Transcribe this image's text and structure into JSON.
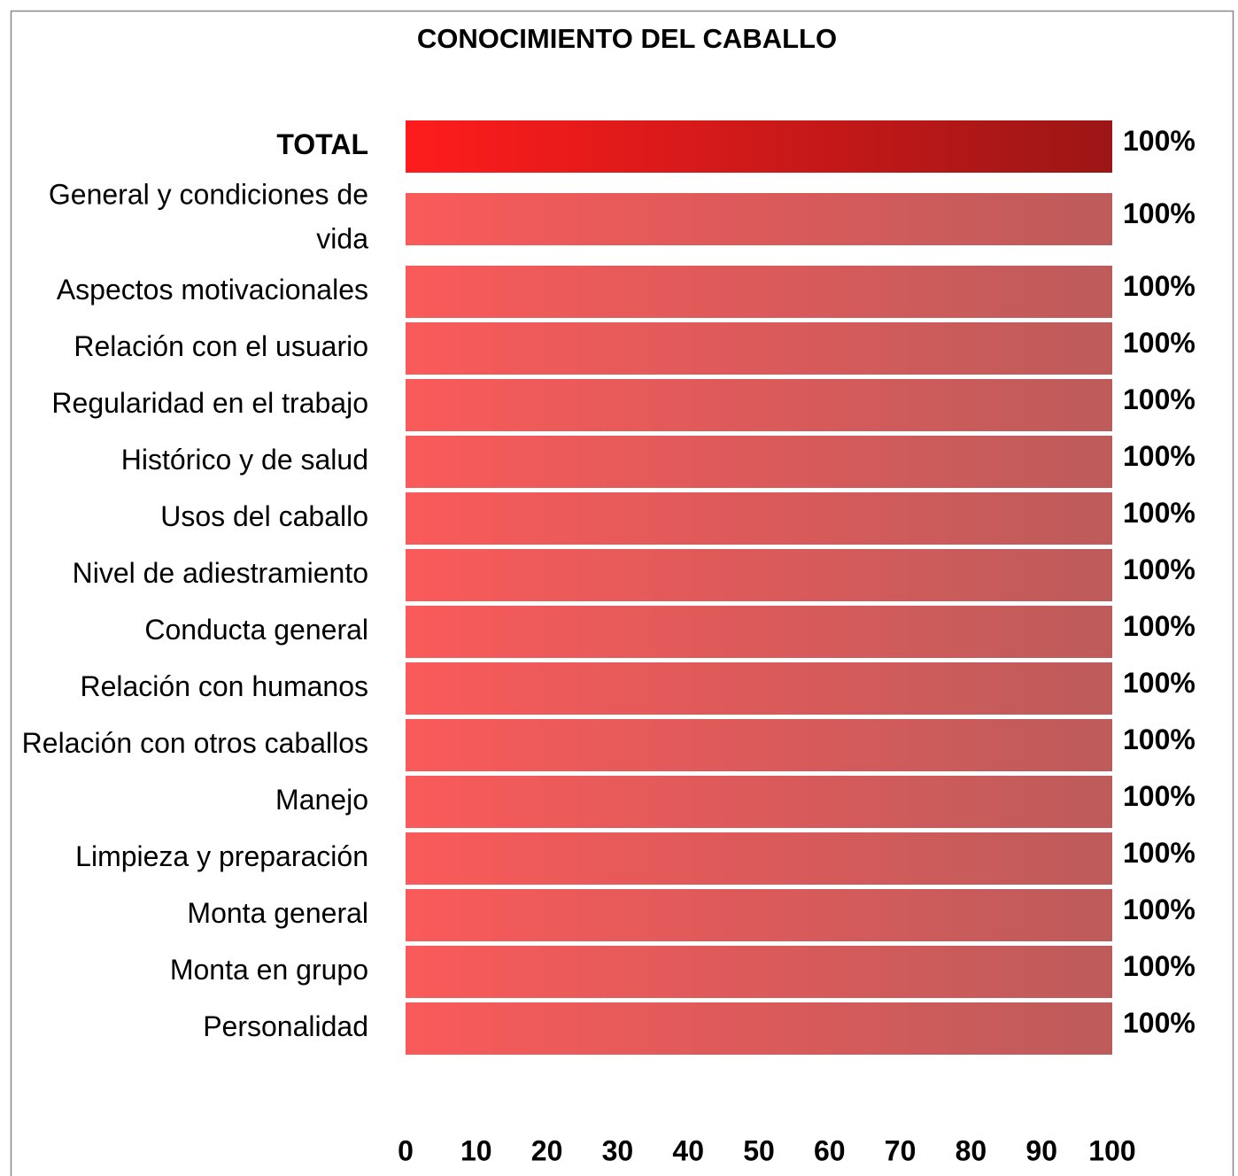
{
  "chart_data": {
    "type": "barh",
    "title": "CONOCIMIENTO DEL CABALLO",
    "categories": [
      "TOTAL",
      "General y condiciones de vida",
      "Aspectos motivacionales",
      "Relación con el usuario",
      "Regularidad en el trabajo",
      "Histórico y de salud",
      "Usos del caballo",
      "Nivel de adiestramiento",
      "Conducta general",
      "Relación con humanos",
      "Relación con otros caballos",
      "Manejo",
      "Limpieza y preparación",
      "Monta general",
      "Monta en grupo",
      "Personalidad"
    ],
    "values": [
      100,
      100,
      100,
      100,
      100,
      100,
      100,
      100,
      100,
      100,
      100,
      100,
      100,
      100,
      100,
      100
    ],
    "value_labels": [
      "100%",
      "100%",
      "100%",
      "100%",
      "100%",
      "100%",
      "100%",
      "100%",
      "100%",
      "100%",
      "100%",
      "100%",
      "100%",
      "100%",
      "100%",
      "100%"
    ],
    "color": [
      "#fa5a5a",
      "#bd5b5b"
    ],
    "total_color": [
      "#ff1c1c",
      "#9c1616"
    ],
    "xlim": [
      0,
      100
    ],
    "xticks": [
      0,
      10,
      20,
      30,
      40,
      50,
      60,
      70,
      80,
      90,
      100
    ],
    "grid": false
  }
}
